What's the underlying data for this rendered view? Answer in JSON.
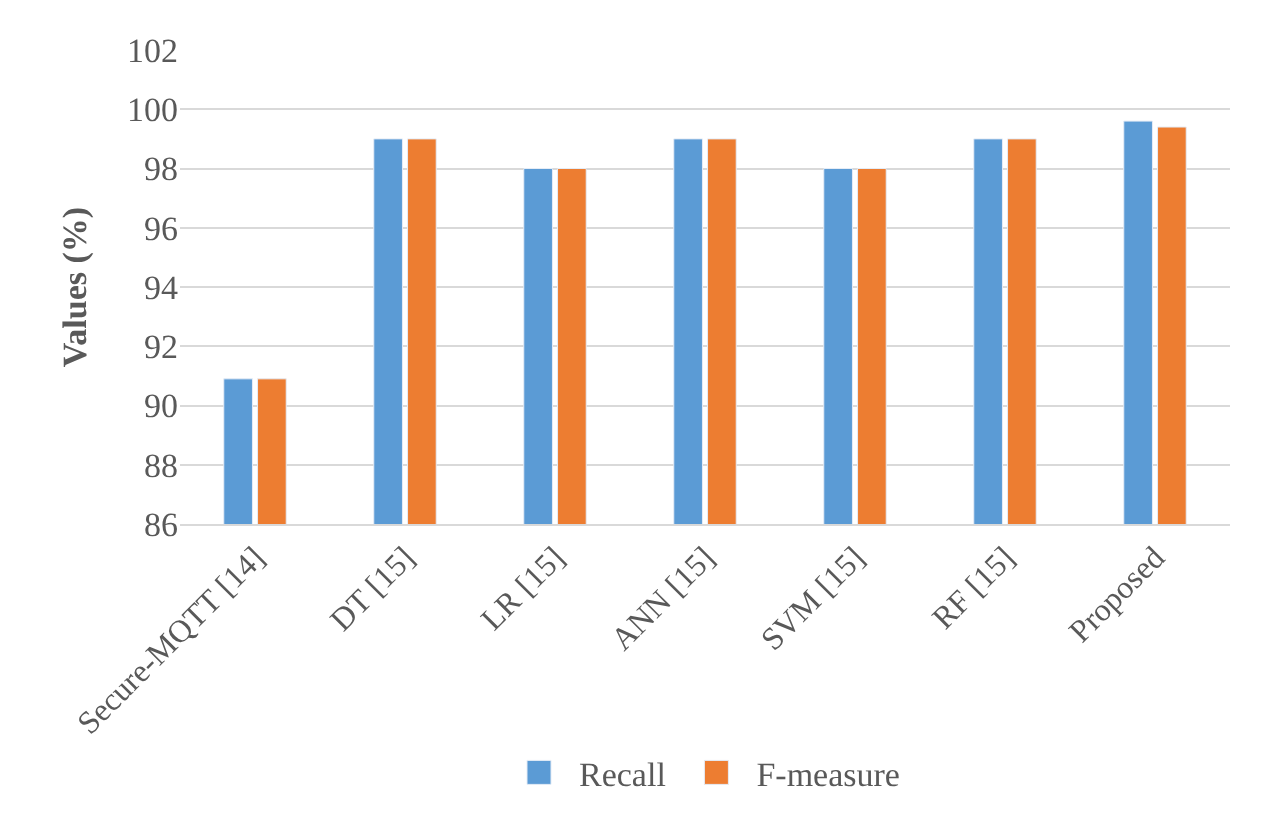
{
  "chart_data": {
    "type": "bar",
    "ylabel": "Values (%)",
    "categories": [
      "Secure-MQTT [14]",
      "DT [15]",
      "LR [15]",
      "ANN [15]",
      "SVM [15]",
      "RF [15]",
      "Proposed"
    ],
    "series": [
      {
        "name": "Recall",
        "color": "#5b9bd5",
        "values": [
          90.9,
          99,
          98,
          99,
          98,
          99,
          99.6
        ]
      },
      {
        "name": "F-measure",
        "color": "#ed7d31",
        "values": [
          90.9,
          99,
          98,
          99,
          98,
          99,
          99.4
        ]
      }
    ],
    "ylim": [
      86,
      102
    ],
    "yticks": [
      86,
      88,
      90,
      92,
      94,
      96,
      98,
      100,
      102
    ],
    "grid": "y",
    "legend": "bottom"
  }
}
